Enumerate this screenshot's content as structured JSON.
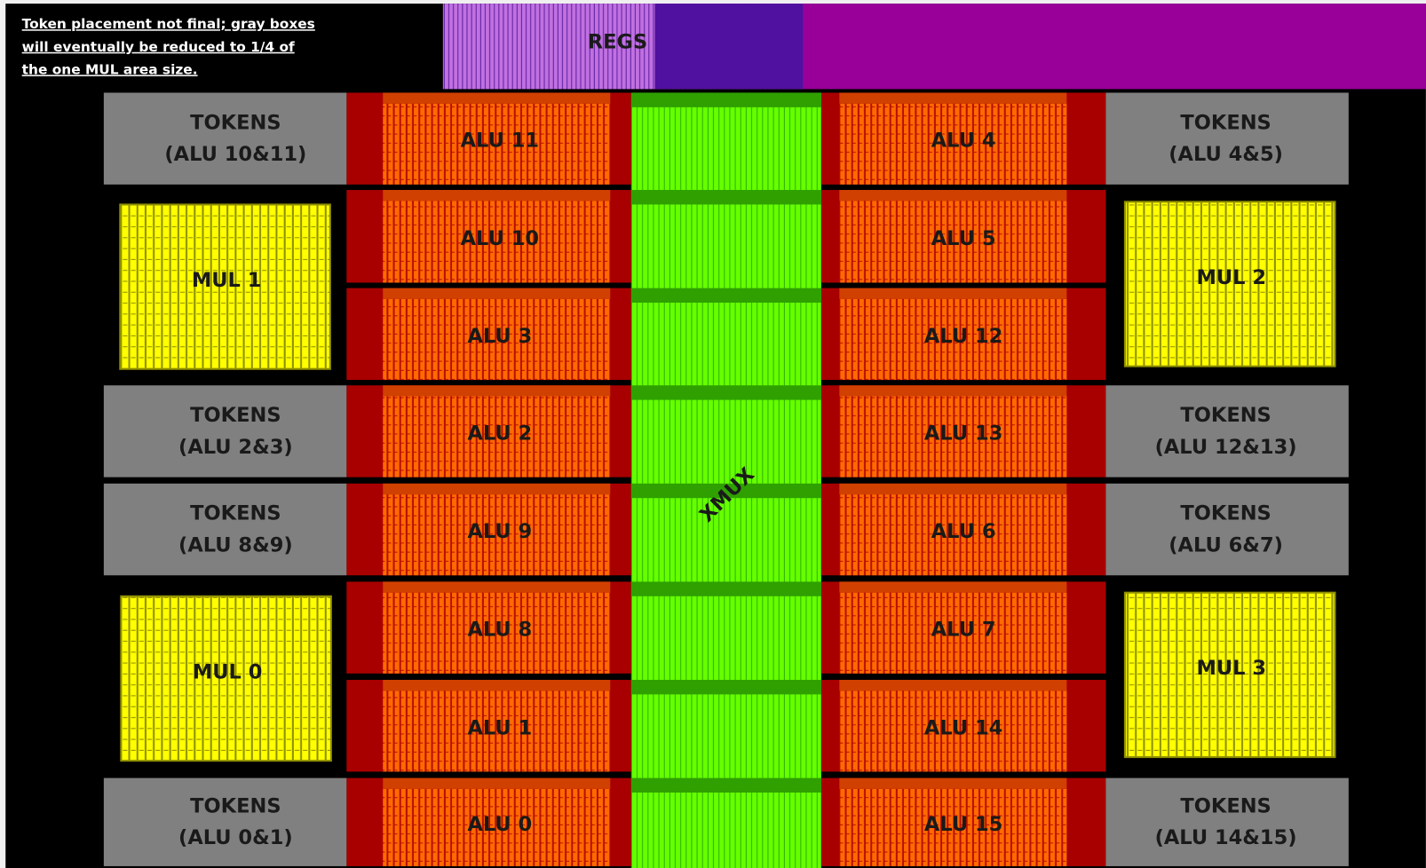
{
  "note": {
    "lines": [
      "Token placement not final; gray boxes",
      "will eventually be reduced to 1/4 of",
      "the one MUL area size."
    ]
  },
  "regs": {
    "label": "REGS"
  },
  "xmux": {
    "label": "XMUX"
  },
  "alu_left": [
    "ALU 11",
    "ALU 10",
    "ALU 3",
    "ALU 2",
    "ALU 9",
    "ALU 8",
    "ALU 1",
    "ALU 0"
  ],
  "alu_right": [
    "ALU 4",
    "ALU 5",
    "ALU 12",
    "ALU 13",
    "ALU 6",
    "ALU 7",
    "ALU 14",
    "ALU 15"
  ],
  "mul": [
    "MUL 1",
    "MUL 0",
    "MUL 2",
    "MUL 3"
  ],
  "tokens": [
    {
      "title": "TOKENS",
      "subtitle": "(ALU 10&11)"
    },
    {
      "title": "TOKENS",
      "subtitle": "(ALU 2&3)"
    },
    {
      "title": "TOKENS",
      "subtitle": "(ALU 8&9)"
    },
    {
      "title": "TOKENS",
      "subtitle": "(ALU 0&1)"
    },
    {
      "title": "TOKENS",
      "subtitle": "(ALU 4&5)"
    },
    {
      "title": "TOKENS",
      "subtitle": "(ALU 12&13)"
    },
    {
      "title": "TOKENS",
      "subtitle": "(ALU 6&7)"
    },
    {
      "title": "TOKENS",
      "subtitle": "(ALU 14&15)"
    }
  ]
}
